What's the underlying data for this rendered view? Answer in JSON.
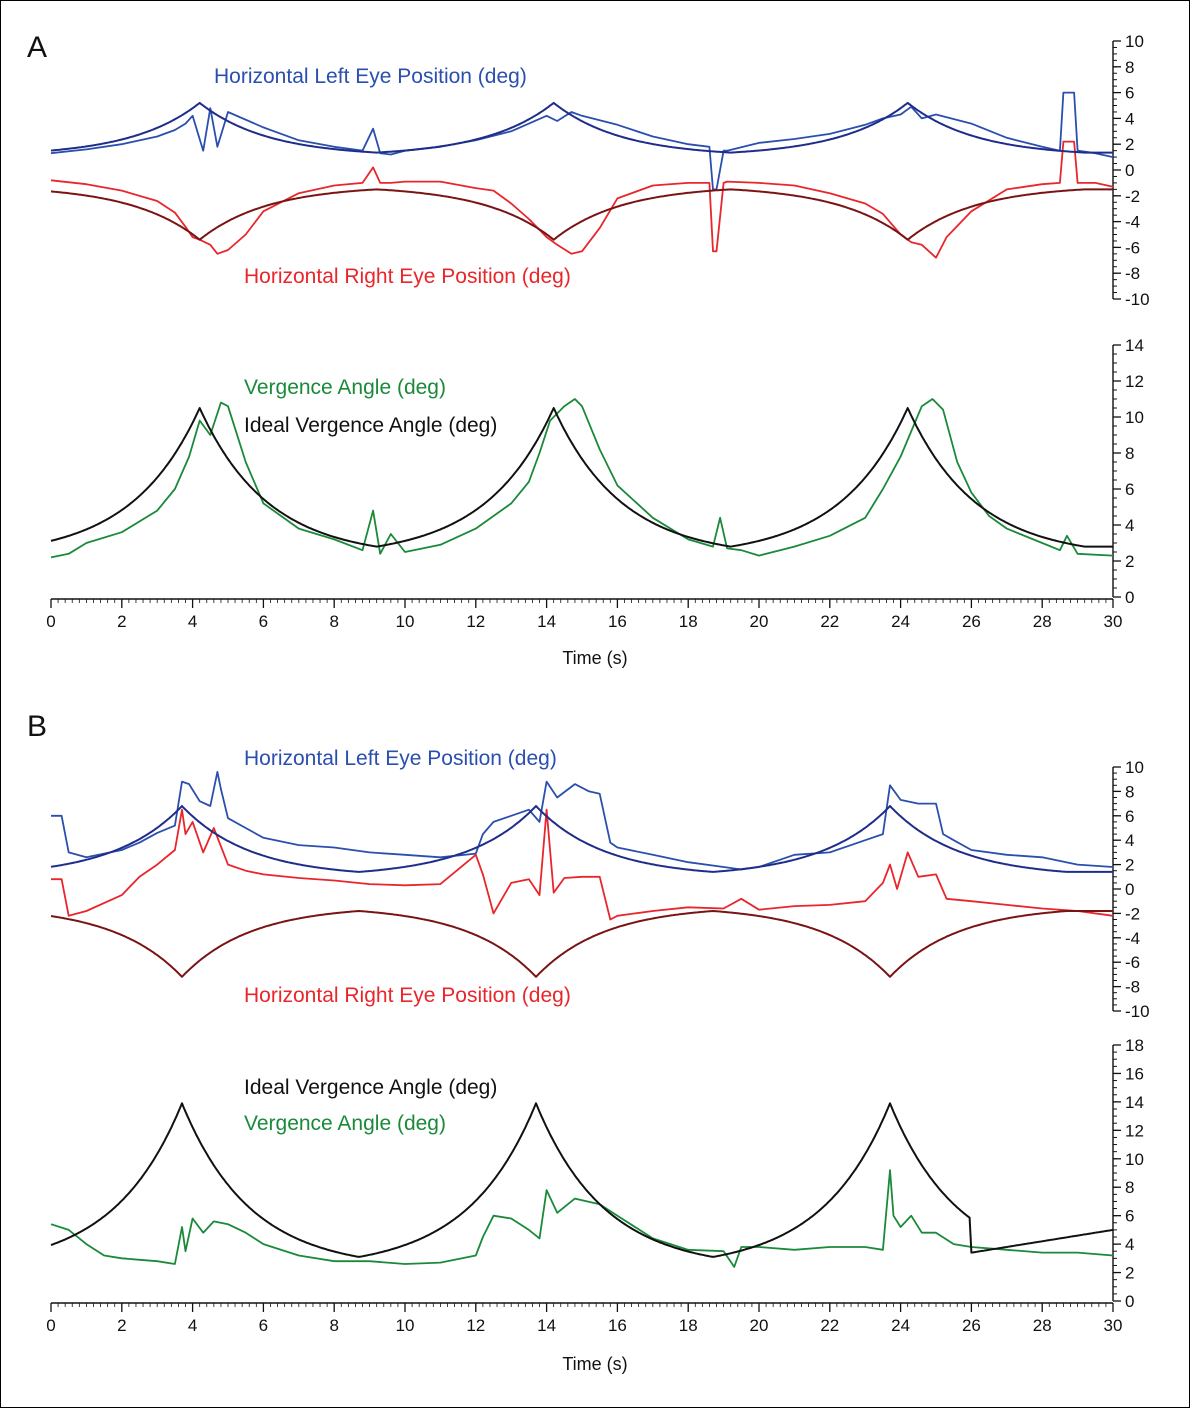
{
  "panels": [
    {
      "label": "A",
      "legend": {
        "left_eye": "Horizontal Left Eye Position (deg)",
        "right_eye": "Horizontal Right Eye Position (deg)",
        "vergence": "Vergence Angle (deg)",
        "ideal_vergence": "Ideal Vergence Angle (deg)"
      },
      "xlabel": "Time (s)"
    },
    {
      "label": "B",
      "legend": {
        "left_eye": "Horizontal Left Eye Position (deg)",
        "right_eye": "Horizontal Right Eye Position (deg)",
        "vergence": "Vergence Angle (deg)",
        "ideal_vergence": "Ideal Vergence Angle (deg)"
      },
      "xlabel": "Time (s)"
    }
  ],
  "colors": {
    "left_eye": "#2b4fae",
    "ideal_left": "#1f2d8a",
    "right_eye": "#e8262b",
    "ideal_right": "#7a1414",
    "vergence": "#1a8a3a",
    "ideal_vergence": "#111111"
  },
  "chart_data": [
    {
      "panel": "A",
      "subplot": "eye-position",
      "type": "line",
      "xlim": [
        0,
        30
      ],
      "ylim": [
        -10,
        10
      ],
      "x_ticks": [
        0,
        2,
        4,
        6,
        8,
        10,
        12,
        14,
        16,
        18,
        20,
        22,
        24,
        26,
        28,
        30
      ],
      "y_ticks": [
        -10,
        -8,
        -6,
        -4,
        -2,
        0,
        2,
        4,
        6,
        8,
        10
      ],
      "series": [
        {
          "name": "Horizontal Left Eye Position (deg)",
          "color_key": "left_eye",
          "x": [
            0,
            1,
            2,
            3,
            3.5,
            3.8,
            4.0,
            4.3,
            4.5,
            4.7,
            5,
            6,
            7,
            8,
            8.8,
            9.1,
            9.3,
            9.6,
            10,
            11,
            12,
            13,
            13.5,
            14,
            14.3,
            14.7,
            15,
            16,
            17,
            18,
            18.6,
            18.7,
            18.8,
            19.0,
            19.1,
            20,
            21,
            22,
            23,
            23.5,
            24,
            24.3,
            24.6,
            25,
            26,
            27,
            28,
            28.5,
            28.6,
            28.9,
            29,
            29.5,
            30
          ],
          "y": [
            1.3,
            1.6,
            2.0,
            2.6,
            3.1,
            3.6,
            4.2,
            1.5,
            4.8,
            1.8,
            4.5,
            3.3,
            2.3,
            1.8,
            1.5,
            3.2,
            1.3,
            1.2,
            1.5,
            1.8,
            2.3,
            3.0,
            3.6,
            4.2,
            3.8,
            4.5,
            4.2,
            3.5,
            2.6,
            2.0,
            1.8,
            -1.5,
            -1.5,
            1.5,
            1.5,
            2.1,
            2.4,
            2.8,
            3.5,
            4.0,
            4.3,
            4.9,
            4.0,
            4.3,
            3.6,
            2.5,
            1.8,
            1.5,
            6.0,
            6.0,
            1.5,
            1.3,
            1.0
          ]
        },
        {
          "name": "Horizontal Right Eye Position (deg)",
          "color_key": "right_eye",
          "x": [
            0,
            1,
            2,
            3,
            3.5,
            3.8,
            4.0,
            4.2,
            4.5,
            4.7,
            5.0,
            5.5,
            6,
            7,
            8,
            8.8,
            9.1,
            9.3,
            9.6,
            10,
            11,
            12,
            12.5,
            13,
            13.5,
            14,
            14.3,
            14.7,
            15,
            15.5,
            16,
            17,
            18,
            18.6,
            18.7,
            18.8,
            19.0,
            19.1,
            20,
            21,
            22,
            23,
            23.5,
            24,
            24.3,
            24.6,
            25,
            25.3,
            26,
            27,
            28,
            28.5,
            28.6,
            28.9,
            29,
            29.5,
            30
          ],
          "y": [
            -0.8,
            -1.1,
            -1.6,
            -2.4,
            -3.3,
            -4.4,
            -5.2,
            -5.4,
            -5.8,
            -6.5,
            -6.2,
            -5.0,
            -3.2,
            -1.8,
            -1.2,
            -1.0,
            0.2,
            -1.0,
            -1.0,
            -0.9,
            -0.9,
            -1.4,
            -1.6,
            -2.6,
            -3.8,
            -5.2,
            -5.8,
            -6.5,
            -6.3,
            -4.5,
            -2.2,
            -1.2,
            -1.0,
            -1.0,
            -6.3,
            -6.3,
            -1.0,
            -0.9,
            -1.0,
            -1.2,
            -1.8,
            -2.6,
            -3.4,
            -5.0,
            -5.6,
            -5.8,
            -6.8,
            -5.2,
            -3.2,
            -1.5,
            -1.1,
            -1.0,
            2.2,
            2.2,
            -1.0,
            -1.0,
            -1.3
          ]
        },
        {
          "name": "Ideal Left Eye Position",
          "color_key": "ideal_left",
          "model": {
            "period": 10,
            "peak_times": [
              4.2,
              14.2,
              24.2
            ],
            "peak": 5.2,
            "trough": 1.35
          }
        },
        {
          "name": "Ideal Right Eye Position",
          "color_key": "ideal_right",
          "model": {
            "period": 10,
            "peak_times": [
              4.2,
              14.2,
              24.2
            ],
            "peak": -5.4,
            "trough": -1.5
          }
        }
      ]
    },
    {
      "panel": "A",
      "subplot": "vergence",
      "type": "line",
      "xlim": [
        0,
        30
      ],
      "ylim": [
        0,
        14
      ],
      "xlabel": "Time (s)",
      "x_ticks": [
        0,
        2,
        4,
        6,
        8,
        10,
        12,
        14,
        16,
        18,
        20,
        22,
        24,
        26,
        28,
        30
      ],
      "y_ticks": [
        0,
        2,
        4,
        6,
        8,
        10,
        12,
        14
      ],
      "series": [
        {
          "name": "Vergence Angle (deg)",
          "color_key": "vergence",
          "x": [
            0,
            0.5,
            1,
            2,
            3,
            3.5,
            3.9,
            4.2,
            4.5,
            4.8,
            5.0,
            5.5,
            6,
            7,
            8,
            8.8,
            9.1,
            9.3,
            9.6,
            10,
            11,
            12,
            13,
            13.5,
            13.8,
            14.1,
            14.5,
            14.8,
            15.0,
            15.5,
            16,
            17,
            18,
            18.7,
            18.9,
            19.1,
            19.5,
            20,
            21,
            22,
            23,
            23.5,
            24,
            24.3,
            24.6,
            24.9,
            25.2,
            25.6,
            26,
            26.5,
            27,
            28,
            28.5,
            28.7,
            29,
            30
          ],
          "y": [
            2.2,
            2.4,
            3.0,
            3.6,
            4.8,
            6.0,
            7.8,
            9.8,
            9.0,
            10.8,
            10.6,
            7.5,
            5.2,
            3.8,
            3.2,
            2.6,
            4.8,
            2.4,
            3.5,
            2.5,
            2.9,
            3.8,
            5.2,
            6.4,
            8.0,
            9.8,
            10.6,
            11.0,
            10.6,
            8.2,
            6.2,
            4.4,
            3.2,
            2.8,
            4.4,
            2.7,
            2.6,
            2.3,
            2.8,
            3.4,
            4.4,
            6.0,
            7.8,
            9.2,
            10.6,
            11.0,
            10.4,
            7.5,
            5.8,
            4.5,
            3.8,
            3.0,
            2.6,
            3.4,
            2.4,
            2.3
          ]
        },
        {
          "name": "Ideal Vergence Angle (deg)",
          "color_key": "ideal_vergence",
          "model": {
            "period": 10,
            "peak_times": [
              4.2,
              14.2,
              24.2
            ],
            "peak": 10.5,
            "trough": 2.8
          }
        }
      ]
    },
    {
      "panel": "B",
      "subplot": "eye-position",
      "type": "line",
      "xlim": [
        0,
        30
      ],
      "ylim": [
        -10,
        10
      ],
      "x_ticks": [
        0,
        2,
        4,
        6,
        8,
        10,
        12,
        14,
        16,
        18,
        20,
        22,
        24,
        26,
        28,
        30
      ],
      "y_ticks": [
        -10,
        -8,
        -6,
        -4,
        -2,
        0,
        2,
        4,
        6,
        8,
        10
      ],
      "series": [
        {
          "name": "Horizontal Left Eye Position (deg)",
          "color_key": "left_eye",
          "x": [
            0,
            0.3,
            0.5,
            1,
            2,
            2.5,
            3,
            3.5,
            3.7,
            3.9,
            4.2,
            4.5,
            4.7,
            4.8,
            5.0,
            5.5,
            6,
            7,
            8,
            9,
            10,
            11,
            12,
            12.2,
            12.5,
            13,
            13.5,
            13.8,
            14.0,
            14.3,
            14.8,
            15.2,
            15.5,
            15.8,
            16,
            17,
            18,
            19,
            19.5,
            20,
            21,
            22,
            23,
            23.5,
            23.7,
            24.0,
            24.5,
            25,
            25.2,
            25.5,
            26,
            27,
            28,
            29,
            30
          ],
          "y": [
            6.0,
            6.0,
            3.0,
            2.6,
            3.2,
            3.8,
            4.6,
            5.2,
            8.8,
            8.6,
            7.2,
            6.8,
            9.6,
            8.2,
            5.8,
            5.0,
            4.2,
            3.6,
            3.4,
            3.0,
            2.8,
            2.6,
            2.9,
            4.5,
            5.5,
            6.0,
            6.5,
            5.5,
            8.8,
            7.5,
            8.6,
            8.0,
            7.8,
            3.8,
            3.4,
            2.8,
            2.2,
            1.8,
            1.6,
            1.8,
            2.8,
            3.0,
            4.0,
            4.5,
            8.5,
            7.3,
            7.0,
            7.0,
            4.5,
            4.0,
            3.2,
            2.8,
            2.6,
            2.0,
            1.8
          ]
        },
        {
          "name": "Horizontal Right Eye Position (deg)",
          "color_key": "right_eye",
          "x": [
            0,
            0.3,
            0.5,
            1,
            2,
            2.5,
            3,
            3.5,
            3.7,
            3.8,
            4.0,
            4.3,
            4.6,
            5.0,
            5.5,
            6,
            7,
            8,
            9,
            10,
            11,
            12,
            12.2,
            12.5,
            13,
            13.5,
            13.8,
            14.0,
            14.2,
            14.5,
            15,
            15.5,
            15.8,
            16,
            17,
            18,
            19,
            19.5,
            20,
            21,
            22,
            23,
            23.5,
            23.7,
            23.9,
            24.2,
            24.5,
            25,
            25.3,
            26,
            27,
            28,
            29,
            30
          ],
          "y": [
            0.8,
            0.8,
            -2.2,
            -1.8,
            -0.5,
            1.0,
            2.0,
            3.2,
            6.5,
            4.5,
            5.5,
            3.0,
            5.0,
            2.0,
            1.5,
            1.2,
            0.9,
            0.7,
            0.4,
            0.3,
            0.4,
            2.8,
            1.2,
            -2.0,
            0.5,
            0.8,
            -0.5,
            6.5,
            -0.3,
            0.9,
            1.0,
            1.0,
            -2.5,
            -2.2,
            -1.8,
            -1.5,
            -1.6,
            -0.8,
            -1.7,
            -1.4,
            -1.3,
            -1.0,
            0.5,
            2.0,
            0.0,
            3.0,
            1.0,
            1.2,
            -0.8,
            -1.0,
            -1.3,
            -1.6,
            -1.8,
            -2.2
          ]
        },
        {
          "name": "Ideal Left Eye Position",
          "color_key": "ideal_left",
          "model": {
            "period": 10,
            "peak_times": [
              3.7,
              13.7,
              23.7
            ],
            "peak": 6.8,
            "trough": 1.4
          }
        },
        {
          "name": "Ideal Right Eye Position",
          "color_key": "ideal_right",
          "model": {
            "period": 10,
            "peak_times": [
              3.7,
              13.7,
              23.7
            ],
            "peak": -7.2,
            "trough": -1.8
          }
        }
      ]
    },
    {
      "panel": "B",
      "subplot": "vergence",
      "type": "line",
      "xlim": [
        0,
        30
      ],
      "ylim": [
        0,
        18
      ],
      "xlabel": "Time (s)",
      "x_ticks": [
        0,
        2,
        4,
        6,
        8,
        10,
        12,
        14,
        16,
        18,
        20,
        22,
        24,
        26,
        28,
        30
      ],
      "y_ticks": [
        0,
        2,
        4,
        6,
        8,
        10,
        12,
        14,
        16,
        18
      ],
      "series": [
        {
          "name": "Vergence Angle (deg)",
          "color_key": "vergence",
          "x": [
            0,
            0.5,
            1,
            1.5,
            2,
            2.5,
            3,
            3.5,
            3.7,
            3.8,
            4.0,
            4.3,
            4.6,
            5.0,
            5.5,
            6,
            7,
            8,
            9,
            10,
            11,
            12,
            12.2,
            12.5,
            13,
            13.5,
            13.8,
            14.0,
            14.3,
            14.8,
            15.5,
            16,
            17,
            18,
            19,
            19.3,
            19.5,
            20,
            21,
            22,
            23,
            23.5,
            23.7,
            23.8,
            24.0,
            24.3,
            24.6,
            25,
            25.5,
            26,
            27,
            28,
            29,
            30
          ],
          "y": [
            5.4,
            5.0,
            4.0,
            3.2,
            3.0,
            2.9,
            2.8,
            2.6,
            5.2,
            3.5,
            5.8,
            4.8,
            5.6,
            5.4,
            4.8,
            4.0,
            3.2,
            2.8,
            2.8,
            2.6,
            2.7,
            3.2,
            4.5,
            6.0,
            5.8,
            5.0,
            4.4,
            7.8,
            6.2,
            7.2,
            6.8,
            6.0,
            4.4,
            3.6,
            3.5,
            2.4,
            3.8,
            3.8,
            3.6,
            3.8,
            3.8,
            3.6,
            9.2,
            6.0,
            5.2,
            6.0,
            4.8,
            4.8,
            4.0,
            3.8,
            3.6,
            3.4,
            3.4,
            3.2
          ]
        },
        {
          "name": "Ideal Vergence Angle (deg)",
          "color_key": "ideal_vergence",
          "model": {
            "period": 10,
            "peak_times": [
              3.7,
              13.7,
              23.7
            ],
            "peak": 13.9,
            "trough": 3.1,
            "step_at": 26,
            "after_step": [
              3.4,
              5.0
            ]
          }
        }
      ]
    }
  ]
}
